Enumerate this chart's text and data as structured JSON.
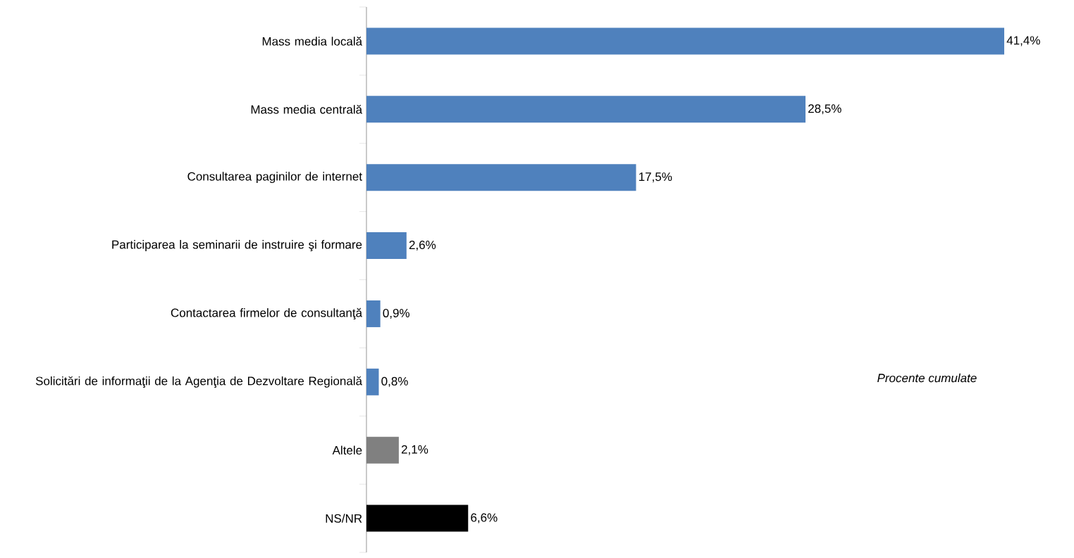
{
  "chart_data": {
    "type": "bar",
    "orientation": "horizontal",
    "categories": [
      "Mass media locală",
      "Mass media centrală",
      "Consultarea paginilor de internet",
      "Participarea la seminarii de instruire şi formare",
      "Contactarea firmelor de consultanţă",
      "Solicitări de informaţii de la Agenţia de Dezvoltare Regională",
      "Altele",
      "NS/NR"
    ],
    "values": [
      41.4,
      28.5,
      17.5,
      2.6,
      0.9,
      0.8,
      2.1,
      6.6
    ],
    "value_labels": [
      "41,4%",
      "28,5%",
      "17,5%",
      "2,6%",
      "0,9%",
      "0,8%",
      "2,1%",
      "6,6%"
    ],
    "colors": [
      "#4f81bd",
      "#4f81bd",
      "#4f81bd",
      "#4f81bd",
      "#4f81bd",
      "#4f81bd",
      "#808080",
      "#000000"
    ],
    "annotations": [
      "Procente cumulate"
    ]
  }
}
